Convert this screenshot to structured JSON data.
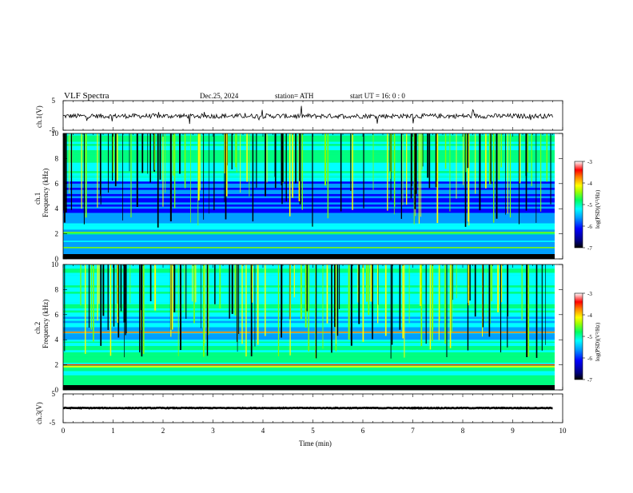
{
  "header": {
    "title": "VLF  Spectra",
    "date": "Dec.25, 2024",
    "station": "station= ATH",
    "start": "start  UT  =    16: 0   : 0"
  },
  "chart_data": [
    {
      "type": "line",
      "panel": "ch1-waveform",
      "ylabel": "ch.1(V)",
      "ylim": [
        -5,
        5
      ],
      "yticks": [
        "5",
        "-5"
      ],
      "xlim": [
        0,
        10
      ]
    },
    {
      "type": "heatmap",
      "panel": "ch1-spectrogram",
      "ylabel_top": "ch.1",
      "ylabel": "Frequency  (kHz)",
      "ylim": [
        0,
        10
      ],
      "yticks": [
        "0",
        "2",
        "4",
        "6",
        "8",
        "10"
      ],
      "colorbar": {
        "label": "log(PSD)(V²/Hz)",
        "range": [
          -7,
          -3
        ],
        "ticks": [
          "-3",
          "-4",
          "-5",
          "-6",
          "-7"
        ]
      }
    },
    {
      "type": "heatmap",
      "panel": "ch2-spectrogram",
      "ylabel_top": "ch.2",
      "ylabel": "Frequency  (kHz)",
      "ylim": [
        0,
        10
      ],
      "yticks": [
        "0",
        "2",
        "4",
        "6",
        "8",
        "10"
      ],
      "colorbar": {
        "label": "log(PSD)(V²/Hz)",
        "range": [
          -7,
          -3
        ],
        "ticks": [
          "-3",
          "-4",
          "-5",
          "-6",
          "-7"
        ]
      }
    },
    {
      "type": "line",
      "panel": "ch3-waveform",
      "ylabel": "ch.3(V)",
      "ylim": [
        -5,
        5
      ],
      "yticks": [
        "5",
        "-5"
      ],
      "xlabel": "Time  (min)",
      "xlim": [
        0,
        10
      ],
      "xticks": [
        "0",
        "1",
        "2",
        "3",
        "4",
        "5",
        "6",
        "7",
        "8",
        "9",
        "10"
      ]
    }
  ],
  "colors": {
    "colormap": [
      "#000080",
      "#0000ff",
      "#00a0ff",
      "#00ffff",
      "#00ff80",
      "#80ff00",
      "#ffff00",
      "#ff8000",
      "#ff0000",
      "#ffc0c0",
      "#ffffff"
    ]
  }
}
